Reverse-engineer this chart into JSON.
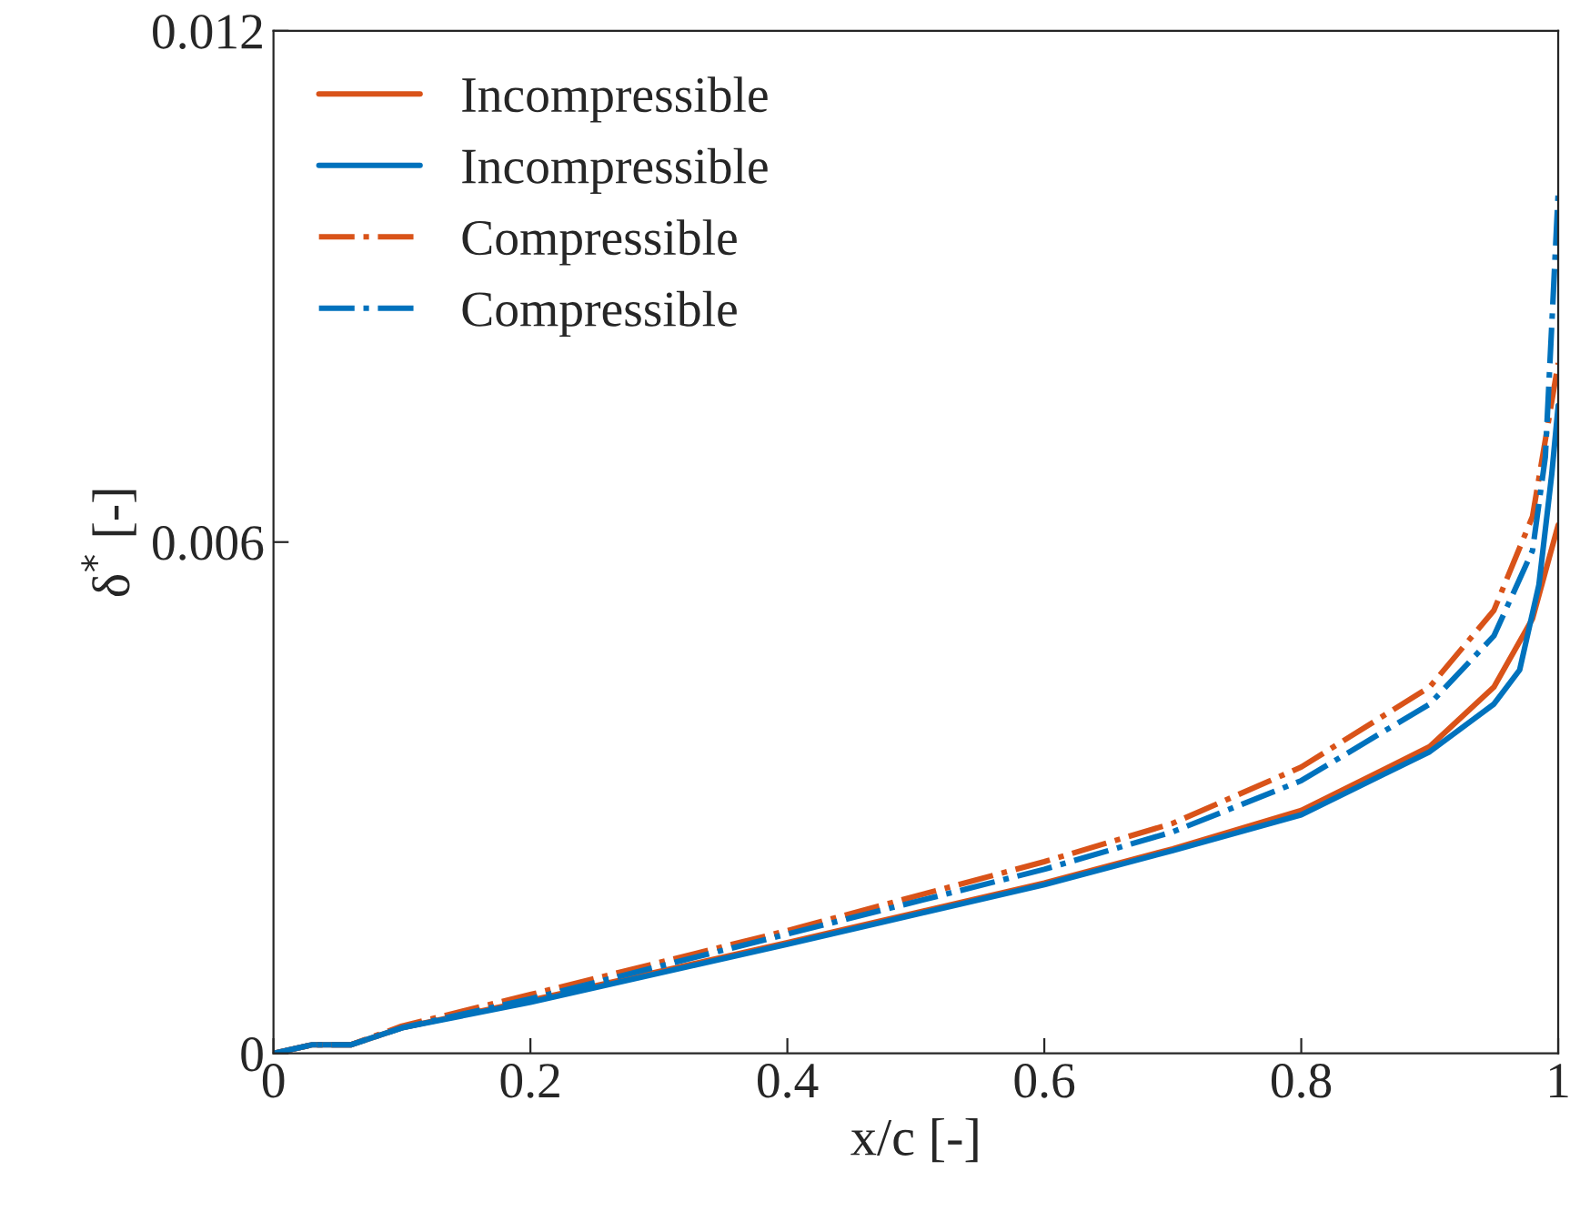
{
  "chart_data": {
    "type": "line",
    "xlabel": "x/c [-]",
    "ylabel": "δ$^{*}$ [-]",
    "xlim": [
      0,
      1
    ],
    "ylim": [
      0,
      0.012
    ],
    "xticks": [
      0,
      0.2,
      0.4,
      0.6,
      0.8,
      1
    ],
    "yticks": [
      0,
      0.006,
      0.012
    ],
    "grid": false,
    "legend": "top left",
    "marker": "none",
    "series": [
      {
        "name": "Incompressible",
        "color": "#d95319",
        "line_style": "solid",
        "x": [
          0,
          0.03,
          0.06,
          0.1,
          0.2,
          0.4,
          0.6,
          0.7,
          0.8,
          0.9,
          0.95,
          0.98,
          1.0
        ],
        "values": [
          0,
          0.0001,
          0.0001,
          0.0003,
          0.00062,
          0.0013,
          0.002,
          0.0024,
          0.00285,
          0.0036,
          0.0043,
          0.0051,
          0.0062
        ]
      },
      {
        "name": "Incompressible",
        "color": "#0072bd",
        "line_style": "solid",
        "x": [
          0,
          0.03,
          0.06,
          0.1,
          0.2,
          0.4,
          0.6,
          0.7,
          0.8,
          0.9,
          0.95,
          0.97,
          0.985,
          0.995,
          1.0
        ],
        "values": [
          0,
          0.0001,
          0.0001,
          0.0003,
          0.0006,
          0.00128,
          0.00198,
          0.00238,
          0.0028,
          0.00354,
          0.0041,
          0.0045,
          0.0055,
          0.0068,
          0.0076
        ]
      },
      {
        "name": "Compressible",
        "color": "#d95319",
        "line_style": "dashdot",
        "x": [
          0,
          0.03,
          0.06,
          0.1,
          0.2,
          0.4,
          0.6,
          0.7,
          0.8,
          0.9,
          0.95,
          0.98,
          1.0
        ],
        "values": [
          0,
          0.0001,
          0.0001,
          0.00032,
          0.00069,
          0.00144,
          0.00225,
          0.0027,
          0.00336,
          0.0043,
          0.0052,
          0.0063,
          0.0081
        ]
      },
      {
        "name": "Compressible",
        "color": "#0072bd",
        "line_style": "dashdot",
        "x": [
          0,
          0.03,
          0.06,
          0.1,
          0.2,
          0.4,
          0.6,
          0.7,
          0.8,
          0.9,
          0.95,
          0.98,
          0.99,
          1.0
        ],
        "values": [
          0,
          0.0001,
          0.0001,
          0.0003,
          0.00064,
          0.0014,
          0.00216,
          0.0026,
          0.0032,
          0.0041,
          0.0049,
          0.0059,
          0.007,
          0.0101
        ]
      }
    ]
  }
}
